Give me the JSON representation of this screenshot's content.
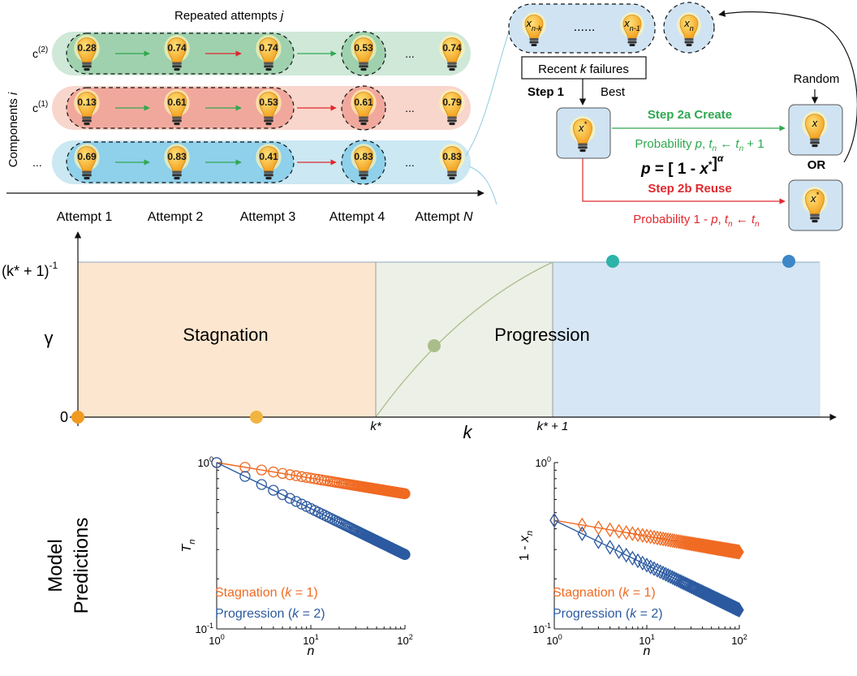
{
  "attempts": {
    "header": "Repeated attempts",
    "header_var": "j",
    "axis_label": "Components",
    "axis_var": "i",
    "labels": [
      "Attempt 1",
      "Attempt 2",
      "Attempt 3",
      "Attempt 4",
      "Attempt"
    ],
    "last_attempt_var": "N",
    "ellipsis": "...",
    "rows": [
      {
        "label": "c",
        "sup": "(2)",
        "values": [
          "0.28",
          "0.74",
          "0.74",
          "0.53",
          "0.74"
        ],
        "fill": "#cfe8d8",
        "fill_dark": "#9fd1ae"
      },
      {
        "label": "c",
        "sup": "(1)",
        "values": [
          "0.13",
          "0.61",
          "0.53",
          "0.61",
          "0.79"
        ],
        "fill": "#f8d6cc",
        "fill_dark": "#f1a89c"
      },
      {
        "label": "...",
        "sup": "",
        "values": [
          "0.69",
          "0.83",
          "0.41",
          "0.83",
          "0.83"
        ],
        "fill": "#cbe8f3",
        "fill_dark": "#8fd0ea"
      }
    ]
  },
  "mechanism": {
    "memory_items": [
      "x",
      "......",
      "x"
    ],
    "memory_subs": [
      "n-k",
      "",
      "n-1"
    ],
    "xn": "x",
    "xn_sub": "n",
    "recent_label_a": "Recent",
    "recent_label_k": "k",
    "recent_label_b": "failures",
    "step1": "Step 1",
    "best": "Best",
    "random": "Random",
    "xstar": "x",
    "xstar_sup": "*",
    "step2a": "Step 2a  Create",
    "prob_a": "Probability",
    "prob_a_p": "p",
    "prob_a_update": "t",
    "prob_a_tail": "+ 1",
    "formula_left": "p",
    "formula_mid": "= [ 1 -",
    "formula_x": "x",
    "formula_close": "]",
    "formula_exp": "α",
    "or": "OR",
    "step2b": "Step 2b  Reuse",
    "prob_b": "Probability 1 -",
    "prob_b_p": "p",
    "new_x": "x",
    "reuse_x": "x",
    "colors": {
      "create": "#2fa84f",
      "reuse": "#e0282e",
      "bulb": "#f6b63a",
      "box": "#cfe3f2"
    }
  },
  "phase": {
    "y_symbol": "γ",
    "y_top_label": "(k* + 1)",
    "y_top_exp": "-1",
    "y_zero": "0",
    "x_symbol": "k",
    "kstar": "k*",
    "kstar_plus": "k* + 1",
    "region_stagnation": "Stagnation",
    "region_progression": "Progression",
    "colors": {
      "stagnation": "#fde6cf",
      "middle": "#edf0e6",
      "progression": "#d6e6f4"
    },
    "points": [
      {
        "color": "#f09a20"
      },
      {
        "color": "#f0b440"
      },
      {
        "color": "#a9bd8a"
      },
      {
        "color": "#2db3a8"
      },
      {
        "color": "#3d86c8"
      }
    ]
  },
  "predictions": {
    "title_line1": "Model",
    "title_line2": "Predictions",
    "left_ylabel": "T",
    "left_ylabel_sub": "n",
    "right_ylabel": "1 - x",
    "right_ylabel_sub": "n",
    "xlabel": "n",
    "ticks_base": "10",
    "x_tick_exps": [
      "0",
      "1",
      "2"
    ],
    "y_tick_exps": [
      "0",
      "-1"
    ],
    "legend_stag": "Stagnation (",
    "legend_stag_k": "k",
    "legend_stag_tail": " = 1)",
    "legend_prog": "Progression (",
    "legend_prog_k": "k",
    "legend_prog_tail": " = 2)",
    "colors": {
      "stagnation": "#f06a22",
      "progression": "#2c5aa0"
    }
  },
  "chart_data": [
    {
      "type": "scatter",
      "xlabel": "n",
      "ylabel": "T_n",
      "xscale": "log",
      "yscale": "log",
      "xlim": [
        1,
        100
      ],
      "ylim": [
        0.1,
        1
      ],
      "series": [
        {
          "name": "Stagnation (k = 1)",
          "x": [
            1,
            100
          ],
          "y": [
            1.0,
            0.65
          ],
          "marker": "circle-open"
        },
        {
          "name": "Progression (k = 2)",
          "x": [
            1,
            100
          ],
          "y": [
            1.0,
            0.28
          ],
          "marker": "circle-open"
        }
      ]
    },
    {
      "type": "scatter",
      "xlabel": "n",
      "ylabel": "1 - x_n",
      "xscale": "log",
      "yscale": "log",
      "xlim": [
        1,
        100
      ],
      "ylim": [
        0.1,
        1
      ],
      "series": [
        {
          "name": "Stagnation (k = 1)",
          "x": [
            1,
            100
          ],
          "y": [
            0.45,
            0.29
          ],
          "marker": "diamond-open"
        },
        {
          "name": "Progression (k = 2)",
          "x": [
            1,
            100
          ],
          "y": [
            0.45,
            0.13
          ],
          "marker": "diamond-open"
        }
      ]
    }
  ]
}
